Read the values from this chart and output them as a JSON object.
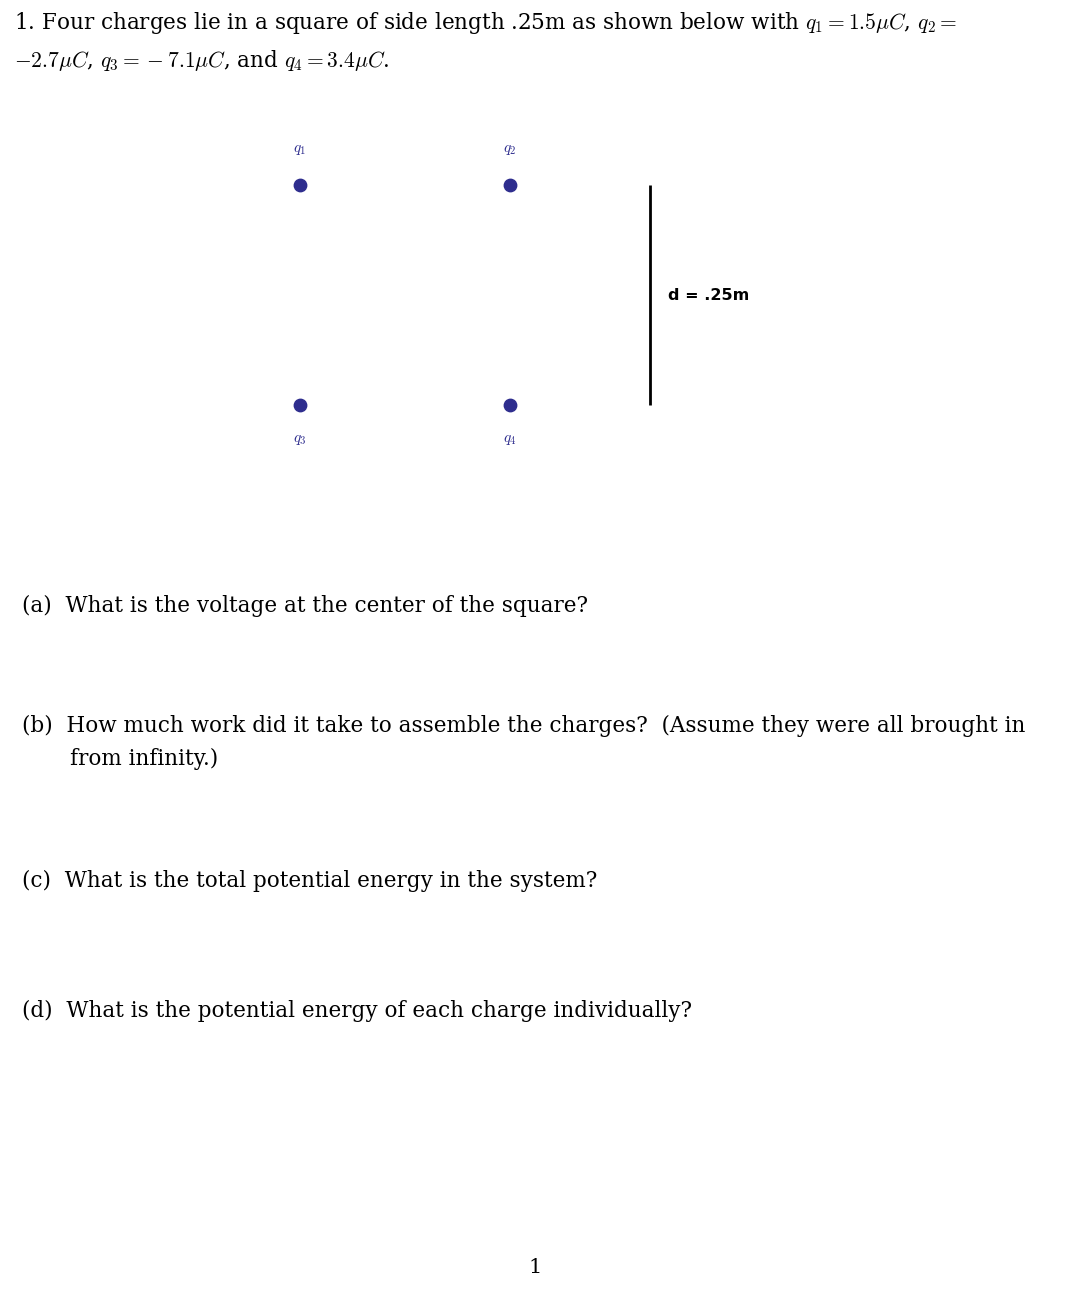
{
  "header_line1": "1. Four charges lie in a square of side length .25m as shown below with $q_1 = 1.5\\mu C$, $q_2 =$",
  "header_line2": "$-2.7\\mu C$, $q_3 = -7.1\\mu C$, and $q_4 = 3.4\\mu C$.",
  "dot_color": "#2e2d8e",
  "dot_size": 80,
  "label_color": "#2e2d8e",
  "scale_label": "d = .25m",
  "q_a": "(a)  What is the voltage at the center of the square?",
  "q_b1": "(b)  How much work did it take to assemble the charges?  (Assume they were all brought in",
  "q_b2": "       from infinity.)",
  "q_c": "(c)  What is the total potential energy in the system?",
  "q_d": "(d)  What is the potential energy of each charge individually?",
  "page_number": "1",
  "background_color": "#ffffff",
  "text_color": "#000000",
  "fig_width": 10.71,
  "fig_height": 13.0,
  "dpi": 100
}
